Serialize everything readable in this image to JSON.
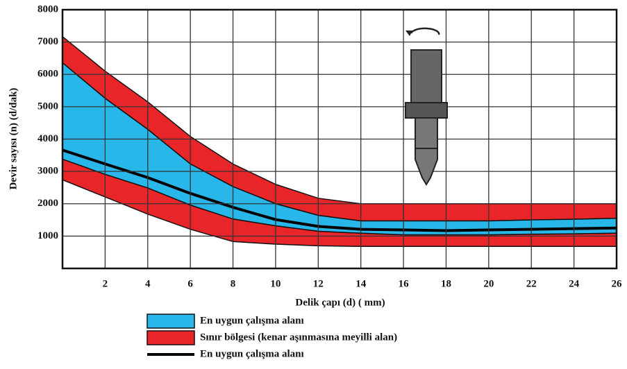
{
  "chart_data": {
    "type": "band",
    "x_label": "Delik çapı (d) ( mm)",
    "y_label": "Devir sayısı (n) (d/dak)",
    "x": [
      0,
      2,
      4,
      6,
      8,
      10,
      12,
      14,
      16,
      18,
      20,
      22,
      24,
      26
    ],
    "xlim": [
      0,
      26
    ],
    "xticks": [
      2,
      4,
      6,
      8,
      10,
      12,
      14,
      16,
      18,
      20,
      22,
      24,
      26
    ],
    "ylim": [
      0,
      8000
    ],
    "yticks": [
      1000,
      2000,
      3000,
      4000,
      5000,
      6000,
      7000,
      8000
    ],
    "grid": true,
    "series": [
      {
        "name": "Sınır bölgesi (kenar aşınmasına meyilli alan)",
        "color": "#e8262a",
        "ranges": [
          {
            "upper": [
              7170,
              6100,
              5150,
              4080,
              3230,
              2600,
              2170,
              2000,
              2000,
              2000,
              2000,
              2000,
              2000,
              2000
            ],
            "lower": [
              6360,
              5260,
              4300,
              3230,
              2530,
              2000,
              1640,
              1470,
              1470,
              1470,
              1470,
              1500,
              1520,
              1550
            ]
          },
          {
            "upper": [
              3380,
              2910,
              2490,
              1960,
              1530,
              1320,
              1150,
              1090,
              1040,
              1040,
              1040,
              1060,
              1070,
              1090
            ],
            "lower": [
              2740,
              2210,
              1680,
              1210,
              830,
              750,
              700,
              680,
              680,
              680,
              680,
              680,
              680,
              680
            ]
          }
        ]
      },
      {
        "name": "En uygun çalışma alanı",
        "color": "#29b6e8",
        "ranges": [
          {
            "upper": [
              6360,
              5260,
              4300,
              3230,
              2530,
              2000,
              1640,
              1470,
              1470,
              1470,
              1470,
              1500,
              1520,
              1550
            ],
            "lower": [
              3380,
              2910,
              2490,
              1960,
              1530,
              1320,
              1150,
              1090,
              1040,
              1040,
              1040,
              1060,
              1070,
              1090
            ]
          }
        ]
      },
      {
        "name": "En uygun çalışma alanı",
        "color": "#000000",
        "values": [
          3660,
          3230,
          2810,
          2320,
          1890,
          1510,
          1300,
          1210,
          1190,
          1170,
          1190,
          1210,
          1230,
          1250
        ]
      }
    ],
    "legend_order": [
      1,
      0,
      2
    ]
  }
}
